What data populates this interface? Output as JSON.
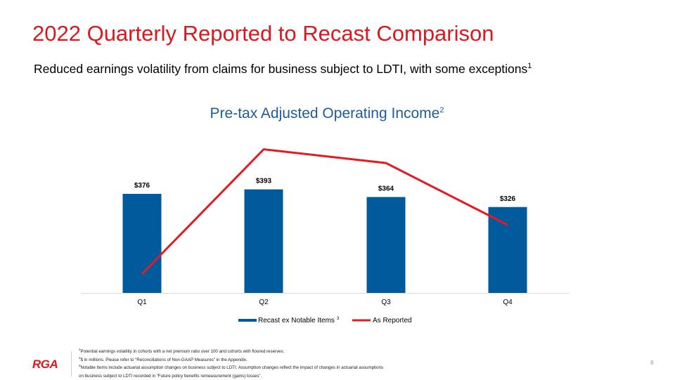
{
  "header": {
    "title": "2022 Quarterly Reported to Recast Comparison",
    "subtitle": "Reduced earnings volatility from claims for business subject to LDTI, with some exceptions",
    "subtitle_sup": "1"
  },
  "chart_data": {
    "type": "bar",
    "title": "Pre-tax Adjusted Operating Income",
    "title_sup": "2",
    "categories": [
      "Q1",
      "Q2",
      "Q3",
      "Q4"
    ],
    "series": [
      {
        "name": "Recast ex Notable Items",
        "name_sup": "3",
        "kind": "bar",
        "color": "#005a9c",
        "values": [
          376,
          393,
          364,
          326
        ],
        "labels": [
          "$376",
          "$393",
          "$364",
          "$326"
        ]
      },
      {
        "name": "As Reported",
        "kind": "line",
        "color": "#e31b23",
        "values": [
          72,
          545,
          493,
          258
        ]
      }
    ],
    "ylim": [
      0,
      560
    ],
    "xlabel": "",
    "ylabel": "",
    "legend": "bottom"
  },
  "footnotes": [
    {
      "sup": "1",
      "text": "Potential earnings volatility in cohorts with a net premium ratio over 100 and cohorts with floored reserves."
    },
    {
      "sup": "2",
      "text": "$ in millions. Please refer to “Reconciliations of Non-GAAP Measures” in the Appendix."
    },
    {
      "sup": "3",
      "text": "Notable Items include actuarial assumption changes on business subject to LDTI; Assumption changes reflect the impact of changes in actuarial assumptions"
    },
    {
      "sup": "",
      "text": "on business subject to LDTI recorded in “Future policy benefits remeasurement (gains) losses”."
    }
  ],
  "footer": {
    "logo": "RGA",
    "page_number": "8"
  },
  "colors": {
    "accent": "#d71920",
    "bar": "#005a9c",
    "line": "#e31b23",
    "chart_title": "#1f5c99"
  }
}
